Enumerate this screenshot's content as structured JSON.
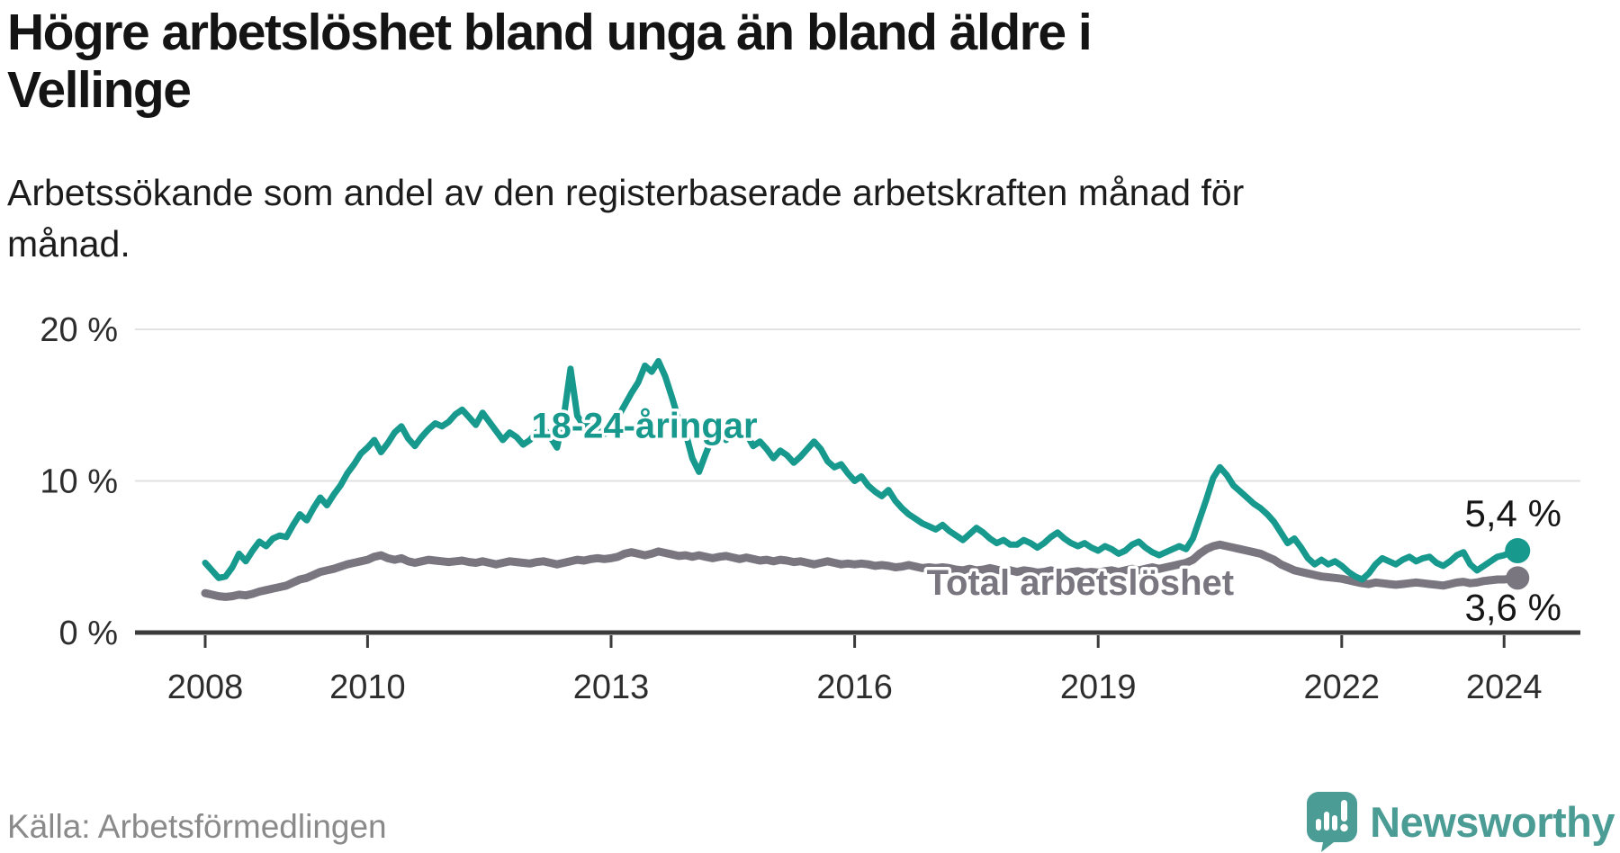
{
  "header": {
    "title": "Högre arbetslöshet bland unga än bland äldre i\nVellinge",
    "subtitle": "Arbetssökande som andel av den registerbaserade arbetskraften månad för\nmånad."
  },
  "footer": {
    "source": "Källa: Arbetsförmedlingen",
    "brand": "Newsworthy"
  },
  "colors": {
    "youth_line": "#18998e",
    "total_line": "#797680",
    "axis": "#3b3b3b",
    "grid": "#e2e2e2",
    "tick_text": "#2d2d2d",
    "end_label_text": "#161616",
    "logo": "#4c9c96"
  },
  "chart_data": {
    "type": "line",
    "title": "Högre arbetslöshet bland unga än bland äldre i Vellinge",
    "subtitle": "Arbetssökande som andel av den registerbaserade arbetskraften månad för månad.",
    "x_start_year": 2008,
    "points_per_year": 12,
    "x_tick_years": [
      2008,
      2010,
      2013,
      2016,
      2019,
      2022,
      2024
    ],
    "x_tick_labels": [
      "2008",
      "2010",
      "2013",
      "2016",
      "2019",
      "2022",
      "2024"
    ],
    "y_ticks": [
      {
        "value": 0,
        "label": "0 %"
      },
      {
        "value": 10,
        "label": "10 %"
      },
      {
        "value": 20,
        "label": "20 %"
      }
    ],
    "ylim": [
      0,
      21
    ],
    "grid": "horizontal-only",
    "legend_position": "inline-labels",
    "series": [
      {
        "name": "Total arbetslöshet",
        "color": "#797680",
        "stroke_width": 9,
        "end_label": "3,6 %",
        "end_label_offset_y": 47,
        "label_pos": {
          "x_year": 2018.78,
          "y_pct": 2.49
        },
        "values": [
          2.6,
          2.5,
          2.4,
          2.35,
          2.4,
          2.5,
          2.45,
          2.55,
          2.7,
          2.8,
          2.9,
          3.0,
          3.1,
          3.3,
          3.5,
          3.6,
          3.8,
          4.0,
          4.1,
          4.2,
          4.35,
          4.5,
          4.6,
          4.7,
          4.8,
          5.0,
          5.1,
          4.9,
          4.8,
          4.9,
          4.7,
          4.6,
          4.7,
          4.8,
          4.75,
          4.7,
          4.65,
          4.7,
          4.75,
          4.65,
          4.6,
          4.7,
          4.6,
          4.5,
          4.6,
          4.7,
          4.65,
          4.6,
          4.55,
          4.65,
          4.7,
          4.6,
          4.5,
          4.6,
          4.7,
          4.8,
          4.75,
          4.85,
          4.9,
          4.85,
          4.9,
          5.0,
          5.2,
          5.3,
          5.2,
          5.1,
          5.2,
          5.35,
          5.25,
          5.15,
          5.05,
          5.1,
          5.0,
          5.1,
          5.0,
          4.9,
          5.0,
          5.05,
          4.95,
          4.85,
          4.95,
          4.85,
          4.75,
          4.8,
          4.7,
          4.8,
          4.75,
          4.65,
          4.7,
          4.6,
          4.5,
          4.6,
          4.7,
          4.6,
          4.5,
          4.55,
          4.5,
          4.55,
          4.5,
          4.4,
          4.45,
          4.4,
          4.3,
          4.35,
          4.45,
          4.35,
          4.25,
          4.3,
          4.25,
          4.3,
          4.25,
          4.15,
          4.1,
          4.2,
          4.1,
          4.15,
          4.25,
          4.15,
          4.05,
          4.1,
          4.0,
          4.1,
          4.05,
          3.95,
          4.0,
          4.1,
          4.0,
          3.9,
          4.0,
          4.05,
          3.95,
          4.0,
          3.95,
          4.05,
          4.1,
          4.0,
          4.1,
          4.2,
          4.1,
          4.2,
          4.3,
          4.2,
          4.3,
          4.4,
          4.5,
          4.6,
          4.8,
          5.2,
          5.5,
          5.7,
          5.8,
          5.7,
          5.6,
          5.5,
          5.4,
          5.3,
          5.2,
          5.0,
          4.8,
          4.5,
          4.3,
          4.1,
          4.0,
          3.9,
          3.8,
          3.7,
          3.65,
          3.6,
          3.55,
          3.45,
          3.35,
          3.25,
          3.2,
          3.3,
          3.25,
          3.2,
          3.15,
          3.2,
          3.25,
          3.3,
          3.25,
          3.2,
          3.15,
          3.1,
          3.2,
          3.3,
          3.35,
          3.25,
          3.3,
          3.4,
          3.45,
          3.5,
          3.5,
          3.55,
          3.6
        ]
      },
      {
        "name": "18-24-åringar",
        "color": "#18998e",
        "stroke_width": 7,
        "end_label": "5,4 %",
        "end_label_offset_y": -27,
        "label_pos": {
          "x_year": 2013.41,
          "y_pct": 12.85
        },
        "values": [
          4.6,
          4.1,
          3.6,
          3.7,
          4.3,
          5.2,
          4.7,
          5.4,
          6.0,
          5.7,
          6.2,
          6.4,
          6.3,
          7.1,
          7.8,
          7.4,
          8.2,
          8.9,
          8.4,
          9.1,
          9.7,
          10.5,
          11.1,
          11.8,
          12.2,
          12.7,
          11.9,
          12.5,
          13.2,
          13.6,
          12.8,
          12.3,
          12.9,
          13.4,
          13.8,
          13.6,
          13.9,
          14.4,
          14.7,
          14.2,
          13.7,
          14.5,
          13.9,
          13.3,
          12.7,
          13.2,
          12.9,
          12.4,
          12.7,
          13.2,
          13.5,
          12.9,
          12.2,
          14.2,
          17.4,
          14.3,
          13.6,
          14.1,
          13.5,
          13.1,
          13.4,
          14.2,
          15.0,
          15.8,
          16.5,
          17.6,
          17.2,
          17.9,
          16.9,
          15.5,
          14.0,
          13.2,
          11.5,
          10.6,
          11.8,
          12.9,
          13.2,
          12.7,
          13.4,
          13.0,
          13.1,
          12.3,
          12.6,
          12.1,
          11.5,
          12.0,
          11.7,
          11.2,
          11.6,
          12.1,
          12.6,
          12.1,
          11.3,
          10.9,
          11.1,
          10.5,
          10.0,
          10.3,
          9.7,
          9.3,
          9.0,
          9.4,
          8.7,
          8.2,
          7.8,
          7.5,
          7.2,
          7.0,
          6.8,
          7.1,
          6.7,
          6.4,
          6.1,
          6.5,
          6.9,
          6.6,
          6.2,
          5.9,
          6.1,
          5.8,
          5.8,
          6.1,
          5.9,
          5.6,
          5.9,
          6.3,
          6.6,
          6.2,
          5.9,
          5.7,
          5.9,
          5.6,
          5.4,
          5.7,
          5.5,
          5.2,
          5.4,
          5.8,
          6.0,
          5.6,
          5.3,
          5.1,
          5.3,
          5.5,
          5.7,
          5.5,
          6.2,
          7.5,
          8.8,
          10.2,
          10.9,
          10.4,
          9.7,
          9.3,
          8.9,
          8.5,
          8.2,
          7.8,
          7.3,
          6.6,
          5.9,
          6.2,
          5.6,
          4.9,
          4.5,
          4.8,
          4.5,
          4.7,
          4.4,
          4.0,
          3.7,
          3.5,
          3.9,
          4.5,
          4.9,
          4.7,
          4.5,
          4.8,
          5.0,
          4.7,
          4.9,
          5.0,
          4.6,
          4.4,
          4.7,
          5.1,
          5.3,
          4.5,
          4.1,
          4.4,
          4.7,
          5.0,
          5.1,
          5.3,
          5.4
        ]
      }
    ]
  }
}
